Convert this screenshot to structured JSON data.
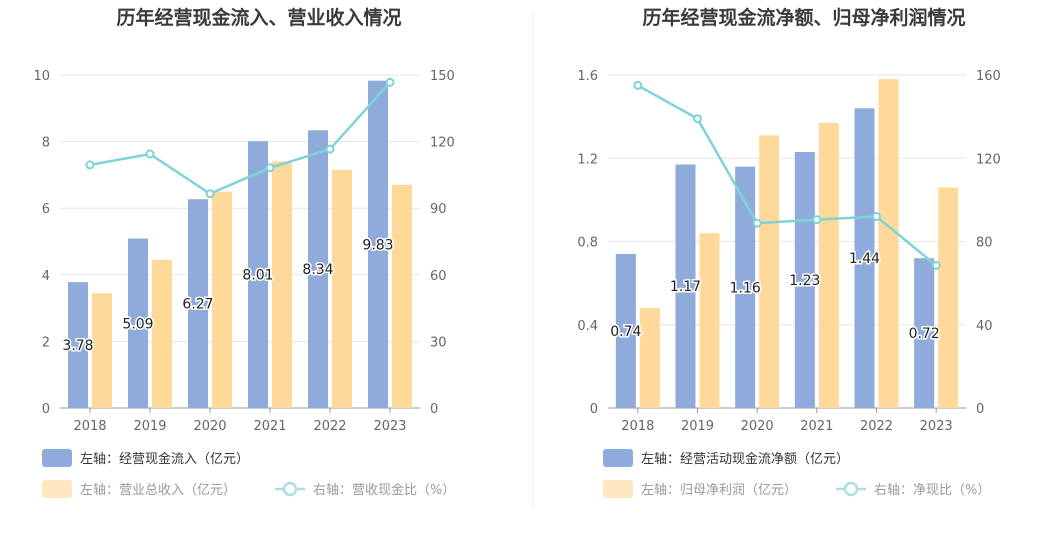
{
  "chart_data": [
    {
      "type": "bar",
      "title": "历年经营现金流入、营业收入情况",
      "categories": [
        "2018",
        "2019",
        "2020",
        "2021",
        "2022",
        "2023"
      ],
      "left_axis": {
        "min": 0,
        "max": 10,
        "ticks": [
          "0",
          "2",
          "4",
          "6",
          "8",
          "10"
        ]
      },
      "right_axis": {
        "min": 0,
        "max": 150,
        "ticks": [
          "0",
          "30",
          "60",
          "90",
          "120",
          "150"
        ]
      },
      "series": [
        {
          "name": "左轴：经营现金流入（亿元）",
          "kind": "bar",
          "axis": "left",
          "color": "#8eabdb",
          "values": [
            3.78,
            5.09,
            6.27,
            8.01,
            8.34,
            9.83
          ],
          "labels": [
            "3.78",
            "5.09",
            "6.27",
            "8.01",
            "8.34",
            "9.83"
          ]
        },
        {
          "name": "左轴：营业总收入（亿元）",
          "kind": "bar",
          "axis": "left",
          "color": "#ffd99a",
          "values": [
            3.45,
            4.45,
            6.5,
            7.4,
            7.15,
            6.7
          ]
        },
        {
          "name": "右轴：营收现金比（%）",
          "kind": "line",
          "axis": "right",
          "color": "#7fd3d6",
          "values": [
            109.5,
            114.4,
            96.5,
            108.2,
            116.6,
            146.7
          ]
        }
      ]
    },
    {
      "type": "bar",
      "title": "历年经营现金流净额、归母净利润情况",
      "categories": [
        "2018",
        "2019",
        "2020",
        "2021",
        "2022",
        "2023"
      ],
      "left_axis": {
        "min": 0,
        "max": 1.6,
        "ticks": [
          "0",
          "0.4",
          "0.8",
          "1.2",
          "1.6"
        ]
      },
      "right_axis": {
        "min": 0,
        "max": 160,
        "ticks": [
          "0",
          "40",
          "80",
          "120",
          "160"
        ]
      },
      "series": [
        {
          "name": "左轴：经营活动现金流净额（亿元）",
          "kind": "bar",
          "axis": "left",
          "color": "#8eabdb",
          "values": [
            0.74,
            1.17,
            1.16,
            1.23,
            1.44,
            0.72
          ],
          "labels": [
            "0.74",
            "1.17",
            "1.16",
            "1.23",
            "1.44",
            "0.72"
          ]
        },
        {
          "name": "左轴：归母净利润（亿元）",
          "kind": "bar",
          "axis": "left",
          "color": "#ffd99a",
          "values": [
            0.48,
            0.84,
            1.31,
            1.37,
            1.58,
            1.06
          ]
        },
        {
          "name": "右轴：净现比（%）",
          "kind": "line",
          "axis": "right",
          "color": "#7fd3d6",
          "values": [
            155,
            139,
            88.8,
            90.5,
            92,
            68.5
          ]
        }
      ]
    }
  ]
}
